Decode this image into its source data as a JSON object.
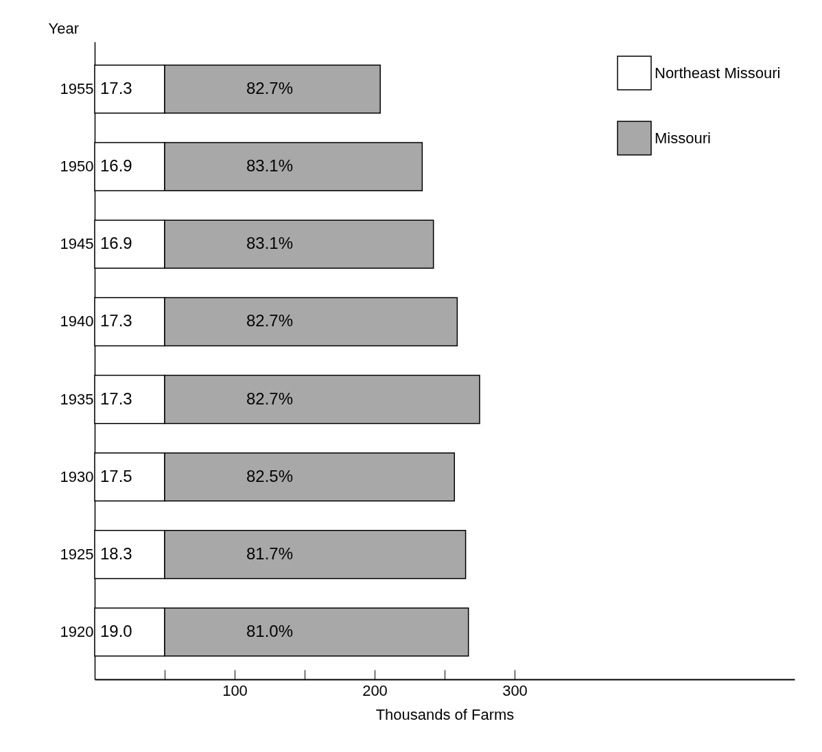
{
  "chart_data": {
    "type": "bar",
    "orientation": "horizontal",
    "stacked": true,
    "xlabel": "Thousands of Farms",
    "ylabel": "Year",
    "categories": [
      "1955",
      "1950",
      "1945",
      "1940",
      "1935",
      "1930",
      "1925",
      "1920"
    ],
    "series": [
      {
        "name": "Northeast Missouri",
        "color": "#ffffff",
        "values": [
          50,
          50,
          50,
          50,
          50,
          50,
          50,
          50
        ]
      },
      {
        "name": "Missouri",
        "color": "#a8a8a8",
        "values": [
          154,
          184,
          192,
          209,
          225,
          207,
          215,
          217
        ]
      }
    ],
    "annotations": [
      "17.3",
      "82.7%",
      "16.9",
      "83.1%",
      "16.9",
      "83.1%",
      "17.3",
      "82.7%",
      "17.3",
      "82.7%",
      "17.5",
      "82.5%",
      "18.3",
      "81.7%",
      "19.0",
      "81.0%"
    ],
    "xlim": [
      0,
      500
    ],
    "xticks": [
      {
        "value": 50,
        "label": null
      },
      100,
      {
        "value": 150,
        "label": null
      },
      200,
      {
        "value": 250,
        "label": null
      },
      300
    ],
    "grid": false,
    "legend": "top right"
  }
}
